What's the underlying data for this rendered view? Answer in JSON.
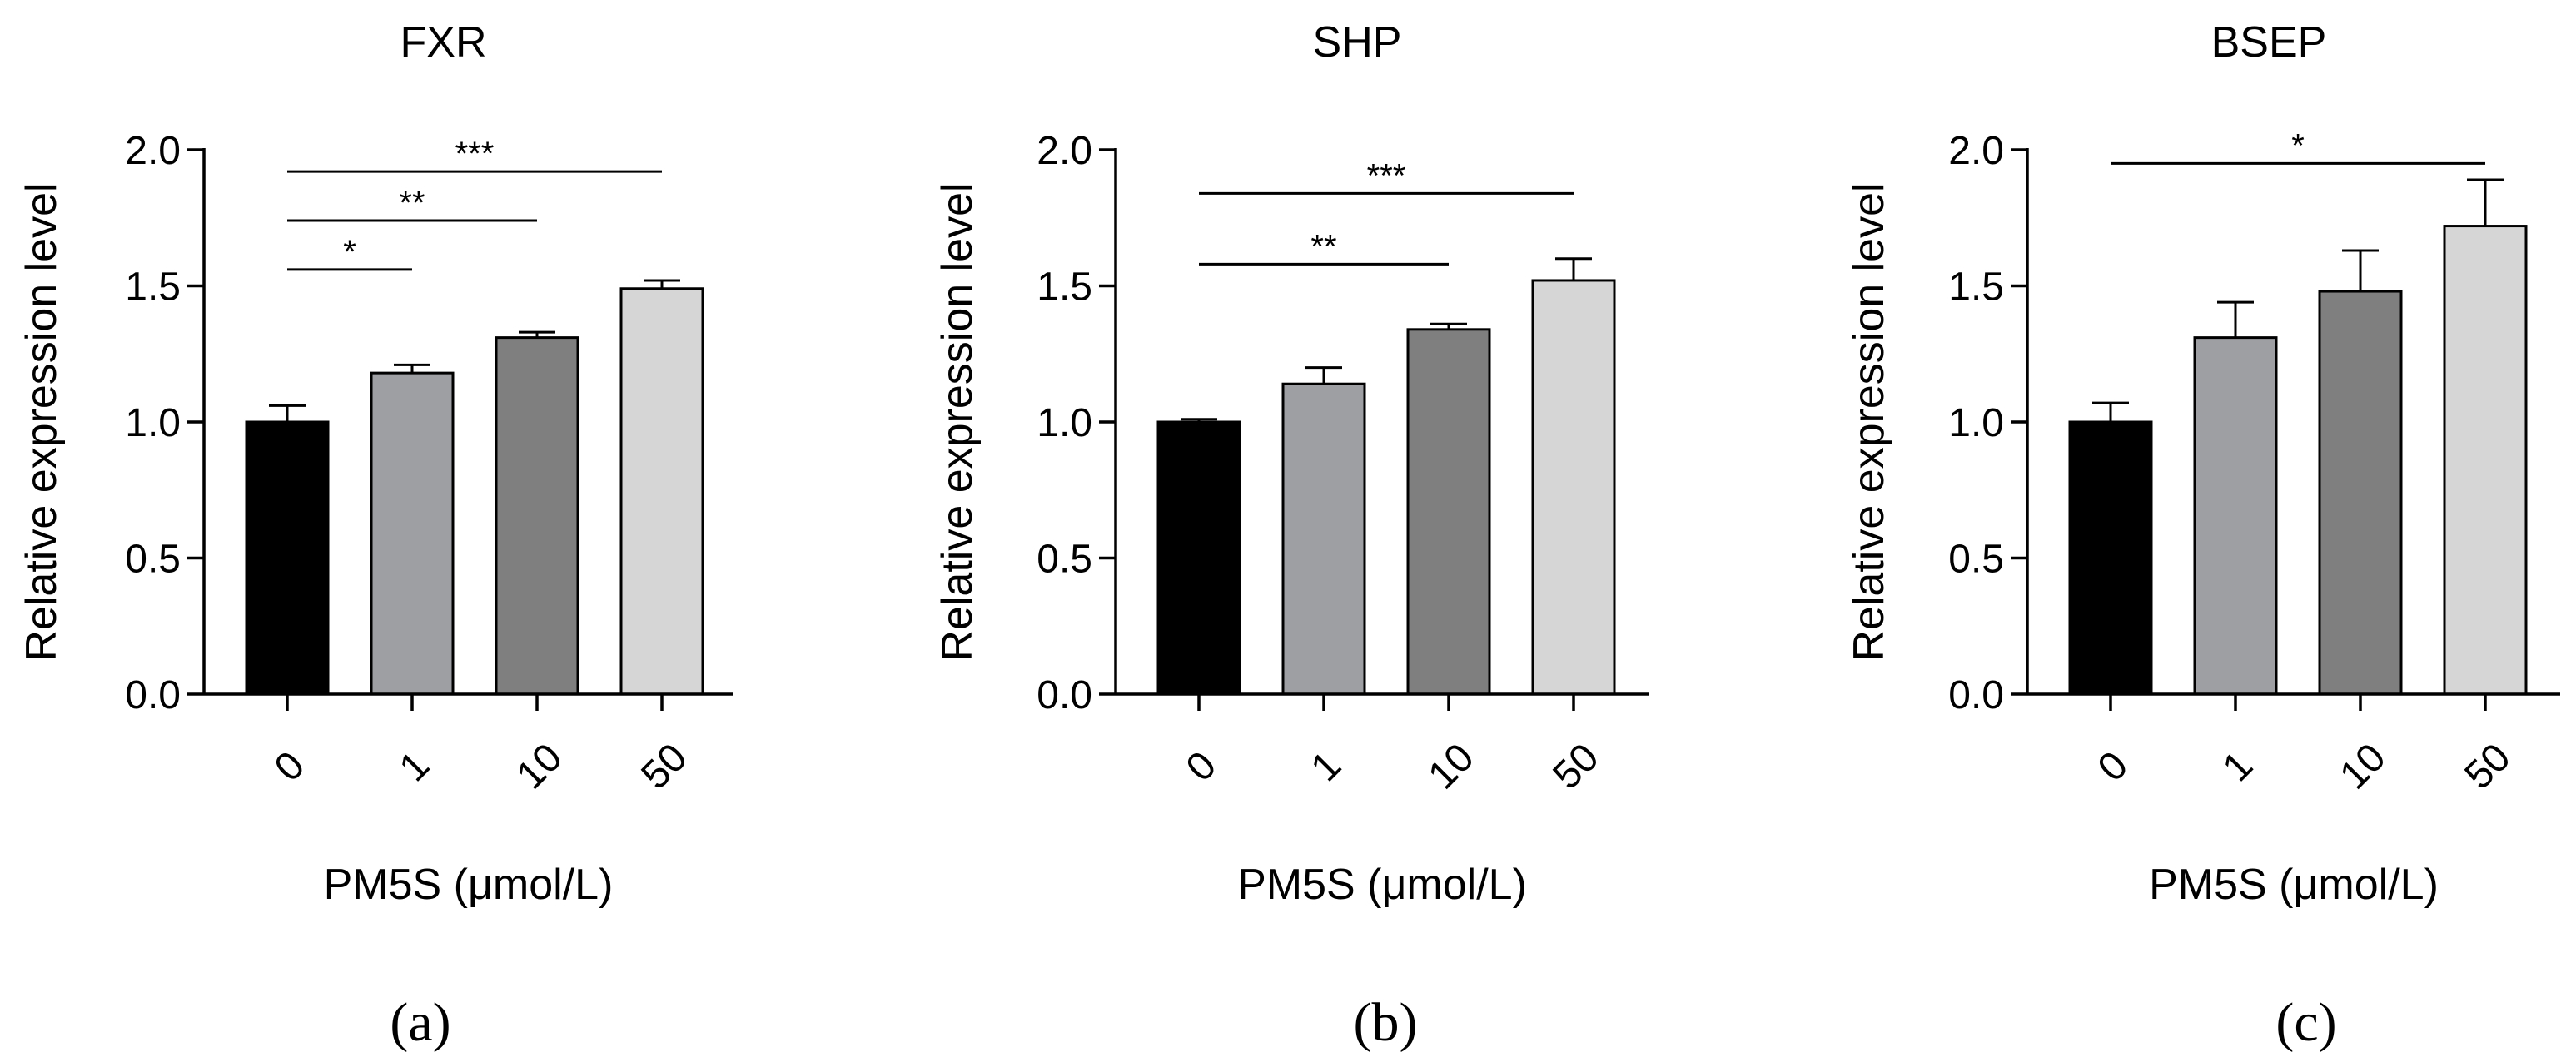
{
  "colors": {
    "bars": [
      "#000000",
      "#9d9fa3",
      "#7f7f7f",
      "#d6d6d6"
    ],
    "axis": "#000000",
    "background": "#ffffff"
  },
  "chart_data": [
    {
      "type": "bar",
      "panel_label": "(a)",
      "title": "FXR",
      "xlabel": "PM5S (μmol/L)",
      "ylabel": "Relative expression level",
      "categories": [
        "0",
        "1",
        "10",
        "50"
      ],
      "values": [
        1.0,
        1.18,
        1.31,
        1.49
      ],
      "errors": [
        0.06,
        0.03,
        0.02,
        0.03
      ],
      "ylim": [
        0,
        2.0
      ],
      "yticks": [
        "0.0",
        "0.5",
        "1.0",
        "1.5",
        "2.0"
      ],
      "grid": false,
      "legend": "none",
      "significance": [
        {
          "from": "0",
          "to": "50",
          "label": "***",
          "y": 1.92
        },
        {
          "from": "0",
          "to": "10",
          "label": "**",
          "y": 1.74
        },
        {
          "from": "0",
          "to": "1",
          "label": "*",
          "y": 1.56
        }
      ]
    },
    {
      "type": "bar",
      "panel_label": "(b)",
      "title": "SHP",
      "xlabel": "PM5S (μmol/L)",
      "ylabel": "Relative expression level",
      "categories": [
        "0",
        "1",
        "10",
        "50"
      ],
      "values": [
        1.0,
        1.14,
        1.34,
        1.52
      ],
      "errors": [
        0.01,
        0.06,
        0.02,
        0.08
      ],
      "ylim": [
        0,
        2.0
      ],
      "yticks": [
        "0.0",
        "0.5",
        "1.0",
        "1.5",
        "2.0"
      ],
      "grid": false,
      "legend": "none",
      "significance": [
        {
          "from": "0",
          "to": "50",
          "label": "***",
          "y": 1.84
        },
        {
          "from": "0",
          "to": "10",
          "label": "**",
          "y": 1.58
        }
      ]
    },
    {
      "type": "bar",
      "panel_label": "(c)",
      "title": "BSEP",
      "xlabel": "PM5S (μmol/L)",
      "ylabel": "Relative expression level",
      "categories": [
        "0",
        "1",
        "10",
        "50"
      ],
      "values": [
        1.0,
        1.31,
        1.48,
        1.72
      ],
      "errors": [
        0.07,
        0.13,
        0.15,
        0.17
      ],
      "ylim": [
        0,
        2.0
      ],
      "yticks": [
        "0.0",
        "0.5",
        "1.0",
        "1.5",
        "2.0"
      ],
      "grid": false,
      "legend": "none",
      "significance": [
        {
          "from": "0",
          "to": "50",
          "label": "*",
          "y": 1.95
        }
      ]
    }
  ]
}
